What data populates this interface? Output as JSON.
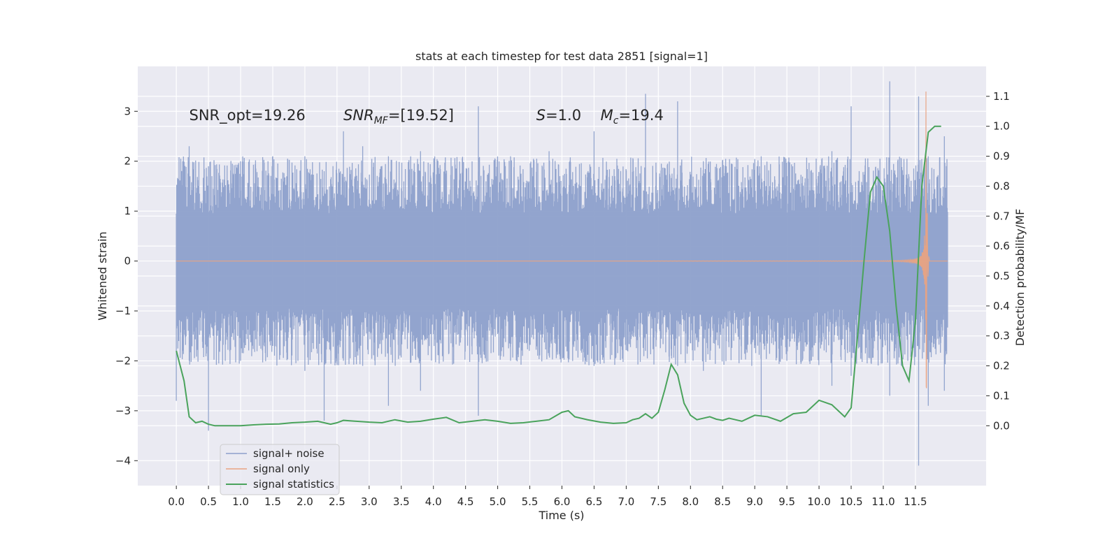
{
  "chart_data": {
    "type": "line",
    "title": "stats at each timestep for test data 2851 [signal=1]",
    "xlabel": "Time (s)",
    "ylabel": "Whitened strain",
    "y2label": "Detection probability/MF",
    "xlim": [
      -0.6,
      12.6
    ],
    "ylim": [
      -4.5,
      3.9
    ],
    "y2lim": [
      -0.2,
      1.2
    ],
    "x_ticks": [
      0.0,
      0.5,
      1.0,
      1.5,
      2.0,
      2.5,
      3.0,
      3.5,
      4.0,
      4.5,
      5.0,
      5.5,
      6.0,
      6.5,
      7.0,
      7.5,
      8.0,
      8.5,
      9.0,
      9.5,
      10.0,
      10.5,
      11.0,
      11.5
    ],
    "x_tick_labels": [
      "0.0",
      "0.5",
      "1.0",
      "1.5",
      "2.0",
      "2.5",
      "3.0",
      "3.5",
      "4.0",
      "4.5",
      "5.0",
      "5.5",
      "6.0",
      "6.5",
      "7.0",
      "7.5",
      "8.0",
      "8.5",
      "9.0",
      "9.5",
      "10.0",
      "10.5",
      "11.0",
      "11.5"
    ],
    "y_ticks": [
      -4,
      -3,
      -2,
      -1,
      0,
      1,
      2,
      3
    ],
    "y_tick_labels": [
      "−4",
      "−3",
      "−2",
      "−1",
      "0",
      "1",
      "2",
      "3"
    ],
    "y2_ticks": [
      0.0,
      0.1,
      0.2,
      0.3,
      0.4,
      0.5,
      0.6,
      0.7,
      0.8,
      0.9,
      1.0,
      1.1
    ],
    "y2_tick_labels": [
      "0.0",
      "0.1",
      "0.2",
      "0.3",
      "0.4",
      "0.5",
      "0.6",
      "0.7",
      "0.8",
      "0.9",
      "1.0",
      "1.1"
    ],
    "grid": true,
    "legend_position": "bottom-left",
    "annotations": [
      {
        "id": "snr-opt",
        "text": "SNR_opt=19.26",
        "x": 0.2,
        "y": 2.82
      },
      {
        "id": "snr-mf",
        "base": "SNR",
        "sub": "MF",
        "rest": "=[19.52]",
        "x": 2.6,
        "y": 2.82
      },
      {
        "id": "s-val",
        "base": "S",
        "rest": "=1.0",
        "x": 5.6,
        "y": 2.82
      },
      {
        "id": "mc-val",
        "base": "M",
        "sub": "c",
        "rest": "=19.4",
        "x": 6.6,
        "y": 2.82
      }
    ],
    "series": [
      {
        "name": "signal+ noise",
        "color": "#8da0cb",
        "kind": "noise-band",
        "duration": 12.0,
        "band": [
          -0.95,
          0.95
        ],
        "spikes": [
          [
            0.0,
            0.08,
            -2.8
          ],
          [
            0.1,
            2.0,
            -1.6
          ],
          [
            0.2,
            2.3,
            -2.0
          ],
          [
            0.5,
            1.9,
            -3.4
          ],
          [
            1.0,
            2.0,
            -2.0
          ],
          [
            1.5,
            2.1,
            -1.7
          ],
          [
            2.0,
            2.1,
            -2.2
          ],
          [
            2.3,
            1.8,
            -3.2
          ],
          [
            2.6,
            2.6,
            -2.0
          ],
          [
            2.9,
            2.3,
            -2.1
          ],
          [
            3.3,
            2.1,
            -2.9
          ],
          [
            3.8,
            2.2,
            -2.6
          ],
          [
            4.7,
            3.1,
            -3.1
          ],
          [
            5.2,
            2.1,
            -2.0
          ],
          [
            5.8,
            2.2,
            -1.9
          ],
          [
            6.5,
            2.6,
            -2.1
          ],
          [
            7.3,
            3.35,
            -1.8
          ],
          [
            7.8,
            3.2,
            -2.1
          ],
          [
            8.2,
            2.0,
            -2.2
          ],
          [
            9.1,
            2.1,
            -3.1
          ],
          [
            9.5,
            1.7,
            -2.0
          ],
          [
            10.2,
            2.2,
            -2.5
          ],
          [
            10.5,
            3.1,
            -2.3
          ],
          [
            11.1,
            3.6,
            -2.7
          ],
          [
            11.55,
            3.3,
            -4.1
          ],
          [
            11.7,
            2.1,
            -2.9
          ],
          [
            11.95,
            2.5,
            -2.6
          ]
        ]
      },
      {
        "name": "signal only",
        "color": "#e9a382",
        "kind": "chirp",
        "t_start": 0.0,
        "t_merge": 11.67,
        "t_end": 12.0,
        "peak": 3.4
      },
      {
        "name": "signal statistics",
        "color": "#4aa35c",
        "axis": "right",
        "x": [
          0.0,
          0.12,
          0.2,
          0.3,
          0.4,
          0.5,
          0.6,
          0.8,
          1.0,
          1.2,
          1.4,
          1.6,
          1.8,
          2.0,
          2.2,
          2.3,
          2.4,
          2.5,
          2.6,
          2.8,
          3.0,
          3.2,
          3.4,
          3.6,
          3.8,
          4.0,
          4.2,
          4.4,
          4.6,
          4.8,
          5.0,
          5.2,
          5.4,
          5.6,
          5.8,
          6.0,
          6.1,
          6.2,
          6.4,
          6.6,
          6.8,
          7.0,
          7.1,
          7.2,
          7.3,
          7.4,
          7.5,
          7.6,
          7.7,
          7.8,
          7.9,
          8.0,
          8.1,
          8.2,
          8.3,
          8.4,
          8.5,
          8.6,
          8.7,
          8.8,
          8.9,
          9.0,
          9.2,
          9.4,
          9.6,
          9.8,
          10.0,
          10.2,
          10.4,
          10.5,
          10.6,
          10.7,
          10.8,
          10.9,
          11.0,
          11.1,
          11.2,
          11.3,
          11.4,
          11.5,
          11.6,
          11.7,
          11.8,
          11.9
        ],
        "y": [
          0.25,
          0.15,
          0.03,
          0.01,
          0.015,
          0.005,
          0.0,
          0.0,
          0.0,
          0.003,
          0.005,
          0.006,
          0.01,
          0.012,
          0.015,
          0.01,
          0.005,
          0.01,
          0.018,
          0.015,
          0.012,
          0.01,
          0.02,
          0.012,
          0.015,
          0.022,
          0.028,
          0.01,
          0.015,
          0.02,
          0.015,
          0.008,
          0.01,
          0.015,
          0.02,
          0.045,
          0.05,
          0.03,
          0.02,
          0.012,
          0.008,
          0.01,
          0.02,
          0.025,
          0.04,
          0.025,
          0.045,
          0.12,
          0.205,
          0.17,
          0.075,
          0.035,
          0.02,
          0.025,
          0.03,
          0.022,
          0.018,
          0.025,
          0.02,
          0.015,
          0.025,
          0.035,
          0.03,
          0.015,
          0.04,
          0.045,
          0.085,
          0.07,
          0.03,
          0.06,
          0.3,
          0.55,
          0.78,
          0.83,
          0.8,
          0.65,
          0.4,
          0.2,
          0.15,
          0.35,
          0.8,
          0.98,
          1.0,
          1.0
        ]
      }
    ]
  }
}
